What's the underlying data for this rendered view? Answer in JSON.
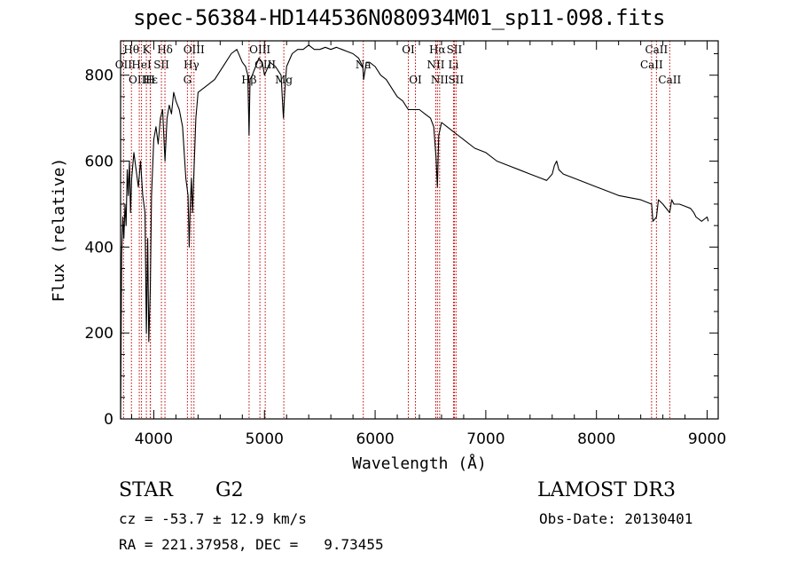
{
  "chart_data": {
    "type": "line",
    "title": "spec-56384-HD144536N080934M01_sp11-098.fits",
    "xlabel": "Wavelength (Å)",
    "ylabel": "Flux (relative)",
    "xlim": [
      3700,
      9100
    ],
    "ylim": [
      0,
      880
    ],
    "xticks": [
      4000,
      5000,
      6000,
      7000,
      8000,
      9000
    ],
    "yticks": [
      0,
      200,
      400,
      600,
      800
    ],
    "series": [
      {
        "name": "spectrum",
        "x": [
          3700,
          3710,
          3720,
          3730,
          3740,
          3750,
          3760,
          3770,
          3780,
          3790,
          3800,
          3820,
          3840,
          3860,
          3880,
          3900,
          3920,
          3933,
          3945,
          3955,
          3968,
          3980,
          4000,
          4020,
          4040,
          4060,
          4080,
          4101,
          4120,
          4140,
          4160,
          4180,
          4200,
          4230,
          4260,
          4290,
          4310,
          4320,
          4330,
          4340,
          4350,
          4380,
          4400,
          4450,
          4500,
          4550,
          4600,
          4650,
          4700,
          4750,
          4800,
          4830,
          4850,
          4861,
          4870,
          4890,
          4920,
          4950,
          4980,
          5000,
          5050,
          5100,
          5150,
          5167,
          5172,
          5183,
          5200,
          5250,
          5300,
          5350,
          5400,
          5450,
          5500,
          5550,
          5600,
          5650,
          5700,
          5750,
          5800,
          5850,
          5889,
          5896,
          5920,
          5950,
          6000,
          6050,
          6100,
          6150,
          6200,
          6250,
          6300,
          6350,
          6400,
          6450,
          6500,
          6530,
          6550,
          6563,
          6575,
          6600,
          6650,
          6700,
          6750,
          6800,
          6900,
          7000,
          7100,
          7200,
          7300,
          7400,
          7500,
          7550,
          7600,
          7620,
          7640,
          7660,
          7700,
          7800,
          7900,
          8000,
          8100,
          8200,
          8300,
          8400,
          8498,
          8510,
          8542,
          8560,
          8600,
          8662,
          8680,
          8700,
          8750,
          8800,
          8850,
          8880,
          8900,
          8950,
          9000,
          9010
        ],
        "values": [
          0,
          380,
          470,
          420,
          500,
          450,
          580,
          520,
          600,
          480,
          560,
          620,
          580,
          540,
          600,
          520,
          480,
          200,
          420,
          180,
          300,
          520,
          650,
          680,
          640,
          700,
          720,
          600,
          700,
          730,
          710,
          760,
          740,
          720,
          680,
          560,
          520,
          400,
          500,
          560,
          480,
          700,
          760,
          770,
          780,
          790,
          810,
          830,
          850,
          860,
          830,
          820,
          800,
          660,
          790,
          800,
          820,
          840,
          830,
          800,
          830,
          820,
          800,
          720,
          700,
          760,
          820,
          850,
          860,
          860,
          870,
          860,
          860,
          865,
          860,
          865,
          860,
          855,
          850,
          840,
          820,
          790,
          830,
          830,
          820,
          800,
          790,
          770,
          750,
          740,
          720,
          720,
          720,
          710,
          700,
          680,
          610,
          540,
          660,
          690,
          680,
          670,
          660,
          650,
          630,
          620,
          600,
          590,
          580,
          570,
          560,
          555,
          570,
          590,
          600,
          580,
          570,
          560,
          550,
          540,
          530,
          520,
          515,
          510,
          500,
          460,
          470,
          510,
          500,
          480,
          510,
          500,
          500,
          495,
          490,
          480,
          470,
          460,
          470,
          460
        ]
      }
    ],
    "lines": [
      {
        "name": "Hθ",
        "wl": 3798,
        "label": "Hθ",
        "row": 1
      },
      {
        "name": "OII",
        "wl": 3727,
        "label": "OII",
        "row": 2
      },
      {
        "name": "OIII",
        "wl": 3869,
        "label": "OIII",
        "row": 3
      },
      {
        "name": "K",
        "wl": 3933,
        "label": "K",
        "row": 1
      },
      {
        "name": "H",
        "wl": 3968,
        "label": "H",
        "row": 3
      },
      {
        "name": "HeI",
        "wl": 3889,
        "label": "HeI",
        "row": 2
      },
      {
        "name": "Hε",
        "wl": 3970,
        "label": "Hε",
        "row": 3
      },
      {
        "name": "SII",
        "wl": 4069,
        "label": "SII",
        "row": 2
      },
      {
        "name": "Hδ",
        "wl": 4101,
        "label": "Hδ",
        "row": 1
      },
      {
        "name": "OIII-b",
        "wl": 4363,
        "label": "OIII",
        "row": 1
      },
      {
        "name": "Hγ",
        "wl": 4340,
        "label": "Hγ",
        "row": 2
      },
      {
        "name": "G",
        "wl": 4304,
        "label": "G",
        "row": 3
      },
      {
        "name": "Hβ",
        "wl": 4861,
        "label": "Hβ",
        "row": 3
      },
      {
        "name": "OIII-c",
        "wl": 4959,
        "label": "OIII",
        "row": 1
      },
      {
        "name": "OIII-d",
        "wl": 5007,
        "label": "OIII",
        "row": 2
      },
      {
        "name": "Mg",
        "wl": 5175,
        "label": "Mg",
        "row": 3
      },
      {
        "name": "Na",
        "wl": 5893,
        "label": "Na",
        "row": 2
      },
      {
        "name": "OI",
        "wl": 6300,
        "label": "OI",
        "row": 1
      },
      {
        "name": "OI-b",
        "wl": 6364,
        "label": "OI",
        "row": 3
      },
      {
        "name": "Hα",
        "wl": 6563,
        "label": "Hα",
        "row": 1
      },
      {
        "name": "NII",
        "wl": 6548,
        "label": "NII",
        "row": 2
      },
      {
        "name": "NII-b",
        "wl": 6583,
        "label": "NII",
        "row": 3
      },
      {
        "name": "SII-b",
        "wl": 6716,
        "label": "SII",
        "row": 1
      },
      {
        "name": "Li",
        "wl": 6708,
        "label": "Li",
        "row": 2
      },
      {
        "name": "SII-c",
        "wl": 6731,
        "label": "SII",
        "row": 3
      },
      {
        "name": "CaII-1",
        "wl": 8498,
        "label": "CaII",
        "row": 2
      },
      {
        "name": "CaII-2",
        "wl": 8542,
        "label": "CaII",
        "row": 1
      },
      {
        "name": "CaII-3",
        "wl": 8662,
        "label": "CaII",
        "row": 3
      }
    ]
  },
  "info": {
    "class_label": "STAR",
    "subclass": "G2",
    "survey": "LAMOST DR3",
    "cz": "cz = -53.7 ± 12.9 km/s",
    "obs_date": "Obs-Date: 20130401",
    "coords": "RA = 221.37958, DEC =   9.73455"
  }
}
